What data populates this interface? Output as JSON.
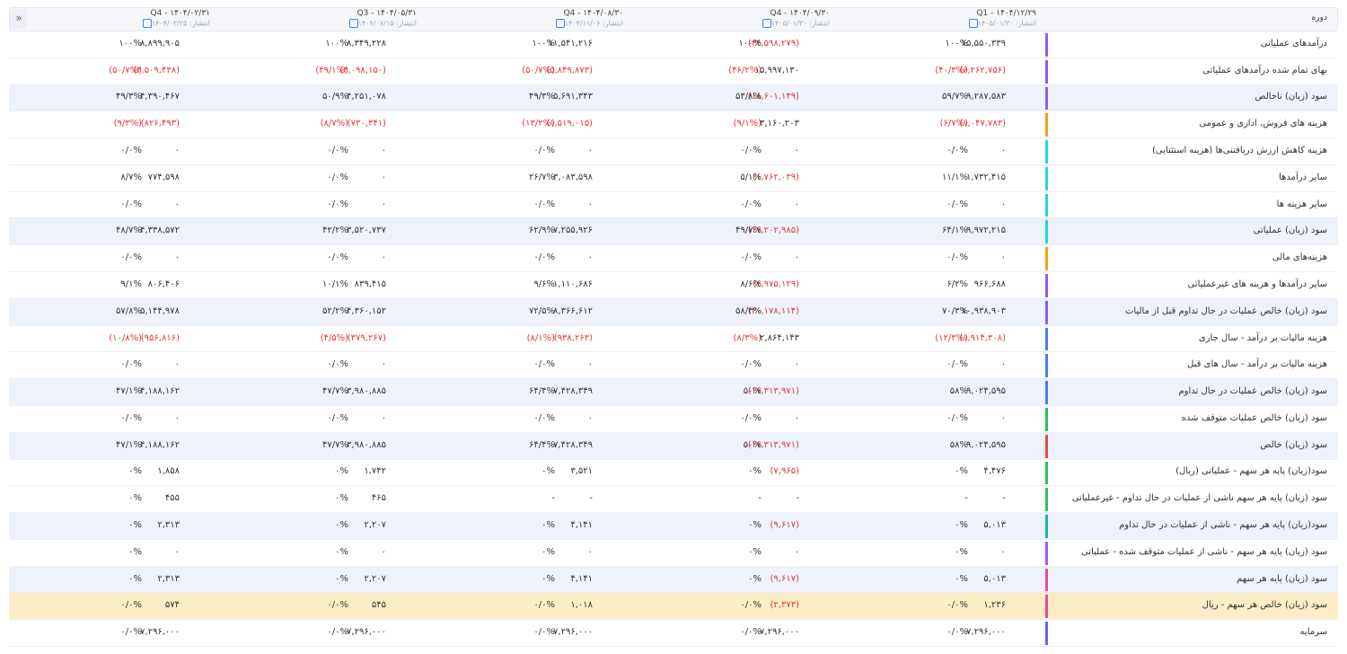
{
  "header": {
    "label": "دوره",
    "periods": [
      {
        "title": "Q1 - ۱۴۰۴/۱۲/۲۹",
        "published": "انتشار: ۱۴۰۵/۰۱/۳۰"
      },
      {
        "title": "Q4 - ۱۴۰۴/۰۹/۳۰",
        "published": "انتشار: ۱۴۰۵/۰۱/۳۰"
      },
      {
        "title": "Q4 - ۱۴۰۴/۰۸/۳۰",
        "published": "انتشار: ۱۴۰۴/۱۱/۰۶"
      },
      {
        "title": "Q3 - ۱۴۰۴/۰۵/۳۱",
        "published": "انتشار: ۱۴۰۴/۰۷/۱۵"
      },
      {
        "title": "Q4 - ۱۴۰۴/۰۲/۳۱",
        "published": "انتشار: ۱۴۰۴/۰۳/۲۵"
      }
    ]
  },
  "rows": [
    {
      "label": "درآمدهای عملیاتی",
      "cells": [
        [
          "۱۵,۵۵۰,۳۳۹",
          "۱۰۰%"
        ],
        [
          "(۳۴,۵۹۸,۲۷۹)",
          "۱۰۰%"
        ],
        [
          "۱۱,۵۴۱,۲۱۶",
          "۱۰۰%"
        ],
        [
          "۸,۳۴۹,۲۲۸",
          "۱۰۰%"
        ],
        [
          "۸,۸۹۹,۹۰۵",
          "۱۰۰%"
        ]
      ]
    },
    {
      "label": "بهای تمام شده درآمدهای عملیاتی",
      "cells": [
        [
          "(۶,۲۶۲,۷۵۶)",
          "(۴۰/۳%)"
        ],
        [
          "۱۵,۹۹۷,۱۳۰",
          "(۴۶/۲%)"
        ],
        [
          "(۵,۸۴۹,۸۷۳)",
          "(۵۰/۷%)"
        ],
        [
          "(۴,۰۹۸,۱۵۰)",
          "(۴۹/۱%)"
        ],
        [
          "(۴,۵۰۹,۴۳۸)",
          "(۵۰/۷%)"
        ]
      ]
    },
    {
      "label": "سود (زیان) ناخالص",
      "cells": [
        [
          "۹,۲۸۷,۵۸۳",
          "۵۹/۷%"
        ],
        [
          "(۱۸,۶۰۱,۱۴۹)",
          "۵۳/۸%"
        ],
        [
          "۵,۶۹۱,۳۴۳",
          "۴۹/۳%"
        ],
        [
          "۴,۲۵۱,۰۷۸",
          "۵۰/۹%"
        ],
        [
          "۴,۳۹۰,۴۶۷",
          "۴۹/۳%"
        ]
      ]
    },
    {
      "label": "هزینه های فروش، اداری و عمومی",
      "cells": [
        [
          "(۱,۰۴۷,۷۸۳)",
          "(۶/۷%)"
        ],
        [
          "۳,۱۶۰,۲۰۳",
          "(۹/۱%)"
        ],
        [
          "(۱,۵۱۹,۰۱۵)",
          "(۱۳/۲%)"
        ],
        [
          "(۷۳۰,۳۴۱)",
          "(۸/۷%)"
        ],
        [
          "(۸۲۶,۴۹۳)",
          "(۹/۳%)"
        ]
      ]
    },
    {
      "label": "هزینه کاهش ارزش دریافتنی‌ها (هزینه استثنایی)",
      "cells": [
        [
          "۰",
          "۰/۰%"
        ],
        [
          "۰",
          "۰/۰%"
        ],
        [
          "۰",
          "۰/۰%"
        ],
        [
          "۰",
          "۰/۰%"
        ],
        [
          "۰",
          "۰/۰%"
        ]
      ]
    },
    {
      "label": "سایر درآمدها",
      "cells": [
        [
          "۱,۷۳۲,۴۱۵",
          "۱۱/۱%"
        ],
        [
          "(۱,۷۶۲,۰۳۹)",
          "۵/۱%"
        ],
        [
          "۳,۰۸۳,۵۹۸",
          "۲۶/۷%"
        ],
        [
          "۰",
          "۰/۰%"
        ],
        [
          "۷۷۴,۵۹۸",
          "۸/۷%"
        ]
      ]
    },
    {
      "label": "سایر هزینه ها",
      "cells": [
        [
          "۰",
          "۰/۰%"
        ],
        [
          "۰",
          "۰/۰%"
        ],
        [
          "۰",
          "۰/۰%"
        ],
        [
          "۰",
          "۰/۰%"
        ],
        [
          "۰",
          "۰/۰%"
        ]
      ]
    },
    {
      "label": "سود (زیان) عملیاتی",
      "cells": [
        [
          "۹,۹۷۲,۲۱۵",
          "۶۴/۱%"
        ],
        [
          "(۱۷,۲۰۲,۹۸۵)",
          "۴۹/۷%"
        ],
        [
          "۷,۲۵۵,۹۲۶",
          "۶۲/۹%"
        ],
        [
          "۳,۵۲۰,۷۳۷",
          "۴۲/۲%"
        ],
        [
          "۴,۳۳۸,۵۷۲",
          "۴۸/۷%"
        ]
      ]
    },
    {
      "label": "هزینه‌های مالی",
      "cells": [
        [
          "۰",
          "۰/۰%"
        ],
        [
          "۰",
          "۰/۰%"
        ],
        [
          "۰",
          "۰/۰%"
        ],
        [
          "۰",
          "۰/۰%"
        ],
        [
          "۰",
          "۰/۰%"
        ]
      ]
    },
    {
      "label": "سایر درآمدها و هزینه های غیرعملیاتی",
      "cells": [
        [
          "۹۶۶,۶۸۸",
          "۶/۲%"
        ],
        [
          "(۲,۹۷۵,۱۲۹)",
          "۸/۶%"
        ],
        [
          "۱,۱۱۰,۶۸۶",
          "۹/۶%"
        ],
        [
          "۸۳۹,۴۱۵",
          "۱۰/۱%"
        ],
        [
          "۸۰۶,۴۰۶",
          "۹/۱%"
        ]
      ]
    },
    {
      "label": "سود (زیان) خالص عملیات در حال تداوم قبل از مالیات",
      "cells": [
        [
          "۱۰,۹۳۸,۹۰۳",
          "۷۰/۳%"
        ],
        [
          "(۲۰,۱۷۸,۱۱۴)",
          "۵۸/۳%"
        ],
        [
          "۸,۳۶۶,۶۱۲",
          "۷۲/۵%"
        ],
        [
          "۴,۳۶۰,۱۵۲",
          "۵۲/۲%"
        ],
        [
          "۵,۱۴۴,۹۷۸",
          "۵۷/۸%"
        ]
      ]
    },
    {
      "label": "هزینه مالیات بر درآمد - سال جاری",
      "cells": [
        [
          "(۱,۹۱۴,۳۰۸)",
          "(۱۲/۳%)"
        ],
        [
          "۲,۸۶۴,۱۴۳",
          "(۸/۳%)"
        ],
        [
          "(۹۳۸,۲۶۳)",
          "(۸/۱%)"
        ],
        [
          "(۳۷۹,۲۶۷)",
          "(۴/۵%)"
        ],
        [
          "(۹۵۶,۸۱۶)",
          "(۱۰/۸%)"
        ]
      ]
    },
    {
      "label": "هزینه مالیات بر درآمد - سال های قبل",
      "cells": [
        [
          "۰",
          "۰/۰%"
        ],
        [
          "۰",
          "۰/۰%"
        ],
        [
          "۰",
          "۰/۰%"
        ],
        [
          "۰",
          "۰/۰%"
        ],
        [
          "۰",
          "۰/۰%"
        ]
      ]
    },
    {
      "label": "سود (زیان) خالص عملیات در حال تداوم",
      "cells": [
        [
          "۹,۰۲۴,۵۹۵",
          "۵۸%"
        ],
        [
          "(۱۷,۳۱۳,۹۷۱)",
          "۵۰%"
        ],
        [
          "۷,۴۲۸,۳۴۹",
          "۶۴/۴%"
        ],
        [
          "۳,۹۸۰,۸۸۵",
          "۴۷/۷%"
        ],
        [
          "۴,۱۸۸,۱۶۲",
          "۴۷/۱%"
        ]
      ]
    },
    {
      "label": "سود (زیان) خالص عملیات متوقف شده",
      "cells": [
        [
          "۰",
          "۰/۰%"
        ],
        [
          "۰",
          "۰/۰%"
        ],
        [
          "۰",
          "۰/۰%"
        ],
        [
          "۰",
          "۰/۰%"
        ],
        [
          "۰",
          "۰/۰%"
        ]
      ]
    },
    {
      "label": "سود (زیان) خالص",
      "cells": [
        [
          "۹,۰۲۴,۵۹۵",
          "۵۸%"
        ],
        [
          "(۱۷,۳۱۳,۹۷۱)",
          "۵۰%"
        ],
        [
          "۷,۴۲۸,۳۴۹",
          "۶۴/۴%"
        ],
        [
          "۳,۹۸۰,۸۸۵",
          "۴۷/۷%"
        ],
        [
          "۴,۱۸۸,۱۶۲",
          "۴۷/۱%"
        ]
      ]
    },
    {
      "label": "سود(زیان) پایه هر سهم - عملیاتی (ریال)",
      "cells": [
        [
          "۴,۴۷۶",
          "۰%"
        ],
        [
          "(۷,۹۶۵)",
          "۰%"
        ],
        [
          "۳,۵۲۱",
          "۰%"
        ],
        [
          "۱,۷۴۲",
          "۰%"
        ],
        [
          "۱,۸۵۸",
          "۰%"
        ]
      ]
    },
    {
      "label": "سود (زیان) پایه هر سهم ناشی از عملیات در حال تداوم - غیرعملیاتی",
      "cells": [
        [
          "-",
          "-"
        ],
        [
          "-",
          "-"
        ],
        [
          "-",
          "-"
        ],
        [
          "۴۶۵",
          "۰%"
        ],
        [
          "۴۵۵",
          "۰%"
        ]
      ]
    },
    {
      "label": "سود(زیان) پایه هر سهم - ناشی از عملیات در حال تداوم",
      "cells": [
        [
          "۵,۰۱۳",
          "۰%"
        ],
        [
          "(۹,۶۱۷)",
          "۰%"
        ],
        [
          "۴,۱۴۱",
          "۰%"
        ],
        [
          "۲,۲۰۷",
          "۰%"
        ],
        [
          "۲,۳۱۳",
          "۰%"
        ]
      ]
    },
    {
      "label": "سود (زیان) پایه هر سهم - ناشی از عملیات متوقف شده - عملیاتی",
      "cells": [
        [
          "۰",
          "۰%"
        ],
        [
          "۰",
          "۰%"
        ],
        [
          "۰",
          "۰%"
        ],
        [
          "۰",
          "۰%"
        ],
        [
          "۰",
          "۰%"
        ]
      ]
    },
    {
      "label": "سود (زیان) پایه هر سهم",
      "cells": [
        [
          "۵,۰۱۳",
          "۰%"
        ],
        [
          "(۹,۶۱۷)",
          "۰%"
        ],
        [
          "۴,۱۴۱",
          "۰%"
        ],
        [
          "۲,۲۰۷",
          "۰%"
        ],
        [
          "۲,۳۱۳",
          "۰%"
        ]
      ]
    },
    {
      "label": "سود (زیان) خالص هر سهم - ریال",
      "cells": [
        [
          "۱,۲۳۶",
          "۰/۰%"
        ],
        [
          "(۲,۳۷۳)",
          "۰/۰%"
        ],
        [
          "۱,۰۱۸",
          "۰/۰%"
        ],
        [
          "۵۴۵",
          "۰/۰%"
        ],
        [
          "۵۷۴",
          "۰/۰%"
        ]
      ]
    },
    {
      "label": "سرمایه",
      "cells": [
        [
          "۷,۲۹۶,۰۰۰",
          "۰/۰%"
        ],
        [
          "۷,۲۹۶,۰۰۰",
          "۰/۰%"
        ],
        [
          "۷,۲۹۶,۰۰۰",
          "۰/۰%"
        ],
        [
          "۷,۲۹۶,۰۰۰",
          "۰/۰%"
        ],
        [
          "۷,۲۹۶,۰۰۰",
          "۰/۰%"
        ]
      ]
    }
  ]
}
